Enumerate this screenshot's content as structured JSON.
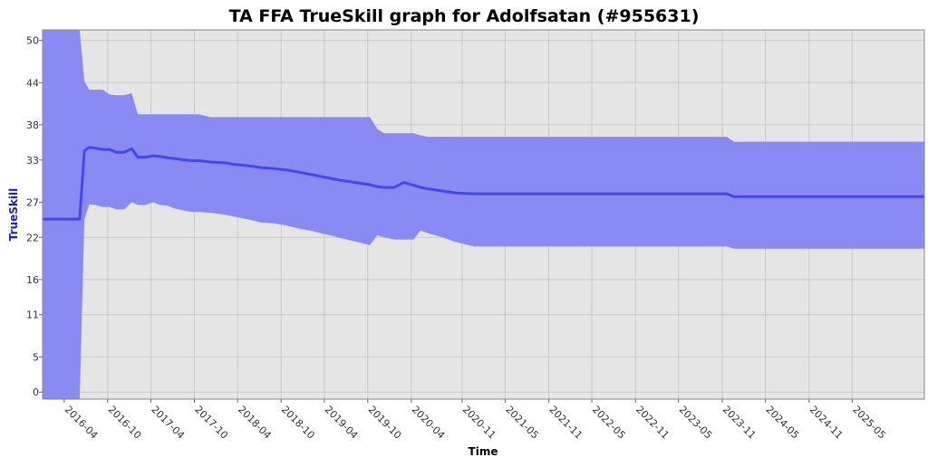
{
  "chart_data": {
    "type": "area",
    "title": "TA FFA TrueSkill graph for Adolfsatan (#955631)",
    "xlabel": "Time",
    "ylabel": "TrueSkill",
    "ylim": [
      -1,
      51.5
    ],
    "xlim": [
      "2016-01-01",
      "2026-03-01"
    ],
    "y_ticks": [
      0,
      5,
      11,
      16,
      22,
      27,
      33,
      38,
      44,
      50
    ],
    "x_ticks": [
      "2016-04",
      "2016-10",
      "2017-04",
      "2017-10",
      "2018-04",
      "2018-10",
      "2019-04",
      "2019-10",
      "2020-04",
      "2020-11",
      "2021-05",
      "2021-11",
      "2022-05",
      "2022-11",
      "2023-05",
      "2023-11",
      "2024-05",
      "2024-11",
      "2025-05"
    ],
    "grid": true,
    "colors": {
      "band": "#8a8af5",
      "line": "#4646f0",
      "plot_background": "#e5e5e5",
      "grid": "#c8c8c8",
      "ylabel": "#1a1ae6"
    },
    "series": [
      {
        "x": [
          "2016-01-01",
          "2016-06-05",
          "2016-06-25",
          "2016-07-15",
          "2016-08-10",
          "2016-09-10",
          "2016-10-10",
          "2016-11-05",
          "2016-12-10",
          "2017-01-10",
          "2017-02-05",
          "2017-03-10",
          "2017-04-10",
          "2017-05-10",
          "2017-06-10",
          "2017-07-10",
          "2017-08-20",
          "2017-09-20",
          "2017-10-20",
          "2017-12-10",
          "2018-02-10",
          "2018-03-10",
          "2018-05-10",
          "2018-07-10",
          "2018-09-01",
          "2018-10-20",
          "2018-12-10",
          "2019-02-10",
          "2019-04-10",
          "2019-06-10",
          "2019-08-10",
          "2019-10-10",
          "2019-11-10",
          "2019-12-10",
          "2020-01-20",
          "2020-03-01",
          "2020-04-10",
          "2020-05-10",
          "2020-06-10",
          "2020-08-10",
          "2020-10-10",
          "2020-12-20",
          "2021-02-10",
          "2022-06-01",
          "2023-06-01",
          "2023-11-20",
          "2023-12-20",
          "2026-03-01"
        ],
        "mean": [
          24.6,
          24.6,
          34.3,
          34.8,
          34.7,
          34.5,
          34.5,
          34.1,
          34.1,
          34.6,
          33.4,
          33.4,
          33.6,
          33.5,
          33.3,
          33.2,
          33.0,
          32.9,
          32.9,
          32.7,
          32.6,
          32.4,
          32.2,
          31.9,
          31.8,
          31.6,
          31.3,
          30.9,
          30.5,
          30.1,
          29.8,
          29.5,
          29.2,
          29.1,
          29.1,
          29.8,
          29.4,
          29.1,
          28.9,
          28.6,
          28.3,
          28.2,
          28.2,
          28.2,
          28.2,
          28.2,
          27.8,
          27.8
        ],
        "upper": [
          51.5,
          51.5,
          44.2,
          43.0,
          43.0,
          43.0,
          42.3,
          42.2,
          42.2,
          42.5,
          39.5,
          39.5,
          39.5,
          39.5,
          39.5,
          39.5,
          39.5,
          39.5,
          39.5,
          39.1,
          39.1,
          39.1,
          39.1,
          39.1,
          39.1,
          39.1,
          39.1,
          39.1,
          39.1,
          39.1,
          39.1,
          39.1,
          37.4,
          36.8,
          36.8,
          36.8,
          36.8,
          36.5,
          36.3,
          36.3,
          36.3,
          36.3,
          36.3,
          36.3,
          36.3,
          36.3,
          35.6,
          35.6
        ],
        "lower": [
          -1,
          -1,
          24.5,
          26.7,
          26.6,
          26.3,
          26.3,
          26.0,
          26.0,
          27.0,
          26.6,
          26.6,
          27.0,
          26.6,
          26.5,
          26.1,
          25.8,
          25.6,
          25.6,
          25.5,
          25.2,
          25.0,
          24.6,
          24.1,
          24.0,
          23.7,
          23.3,
          22.9,
          22.4,
          21.9,
          21.4,
          20.9,
          22.3,
          22.0,
          21.7,
          21.7,
          21.7,
          23.0,
          22.6,
          22.0,
          21.3,
          20.7,
          20.7,
          20.7,
          20.7,
          20.7,
          20.4,
          20.4
        ]
      }
    ]
  }
}
